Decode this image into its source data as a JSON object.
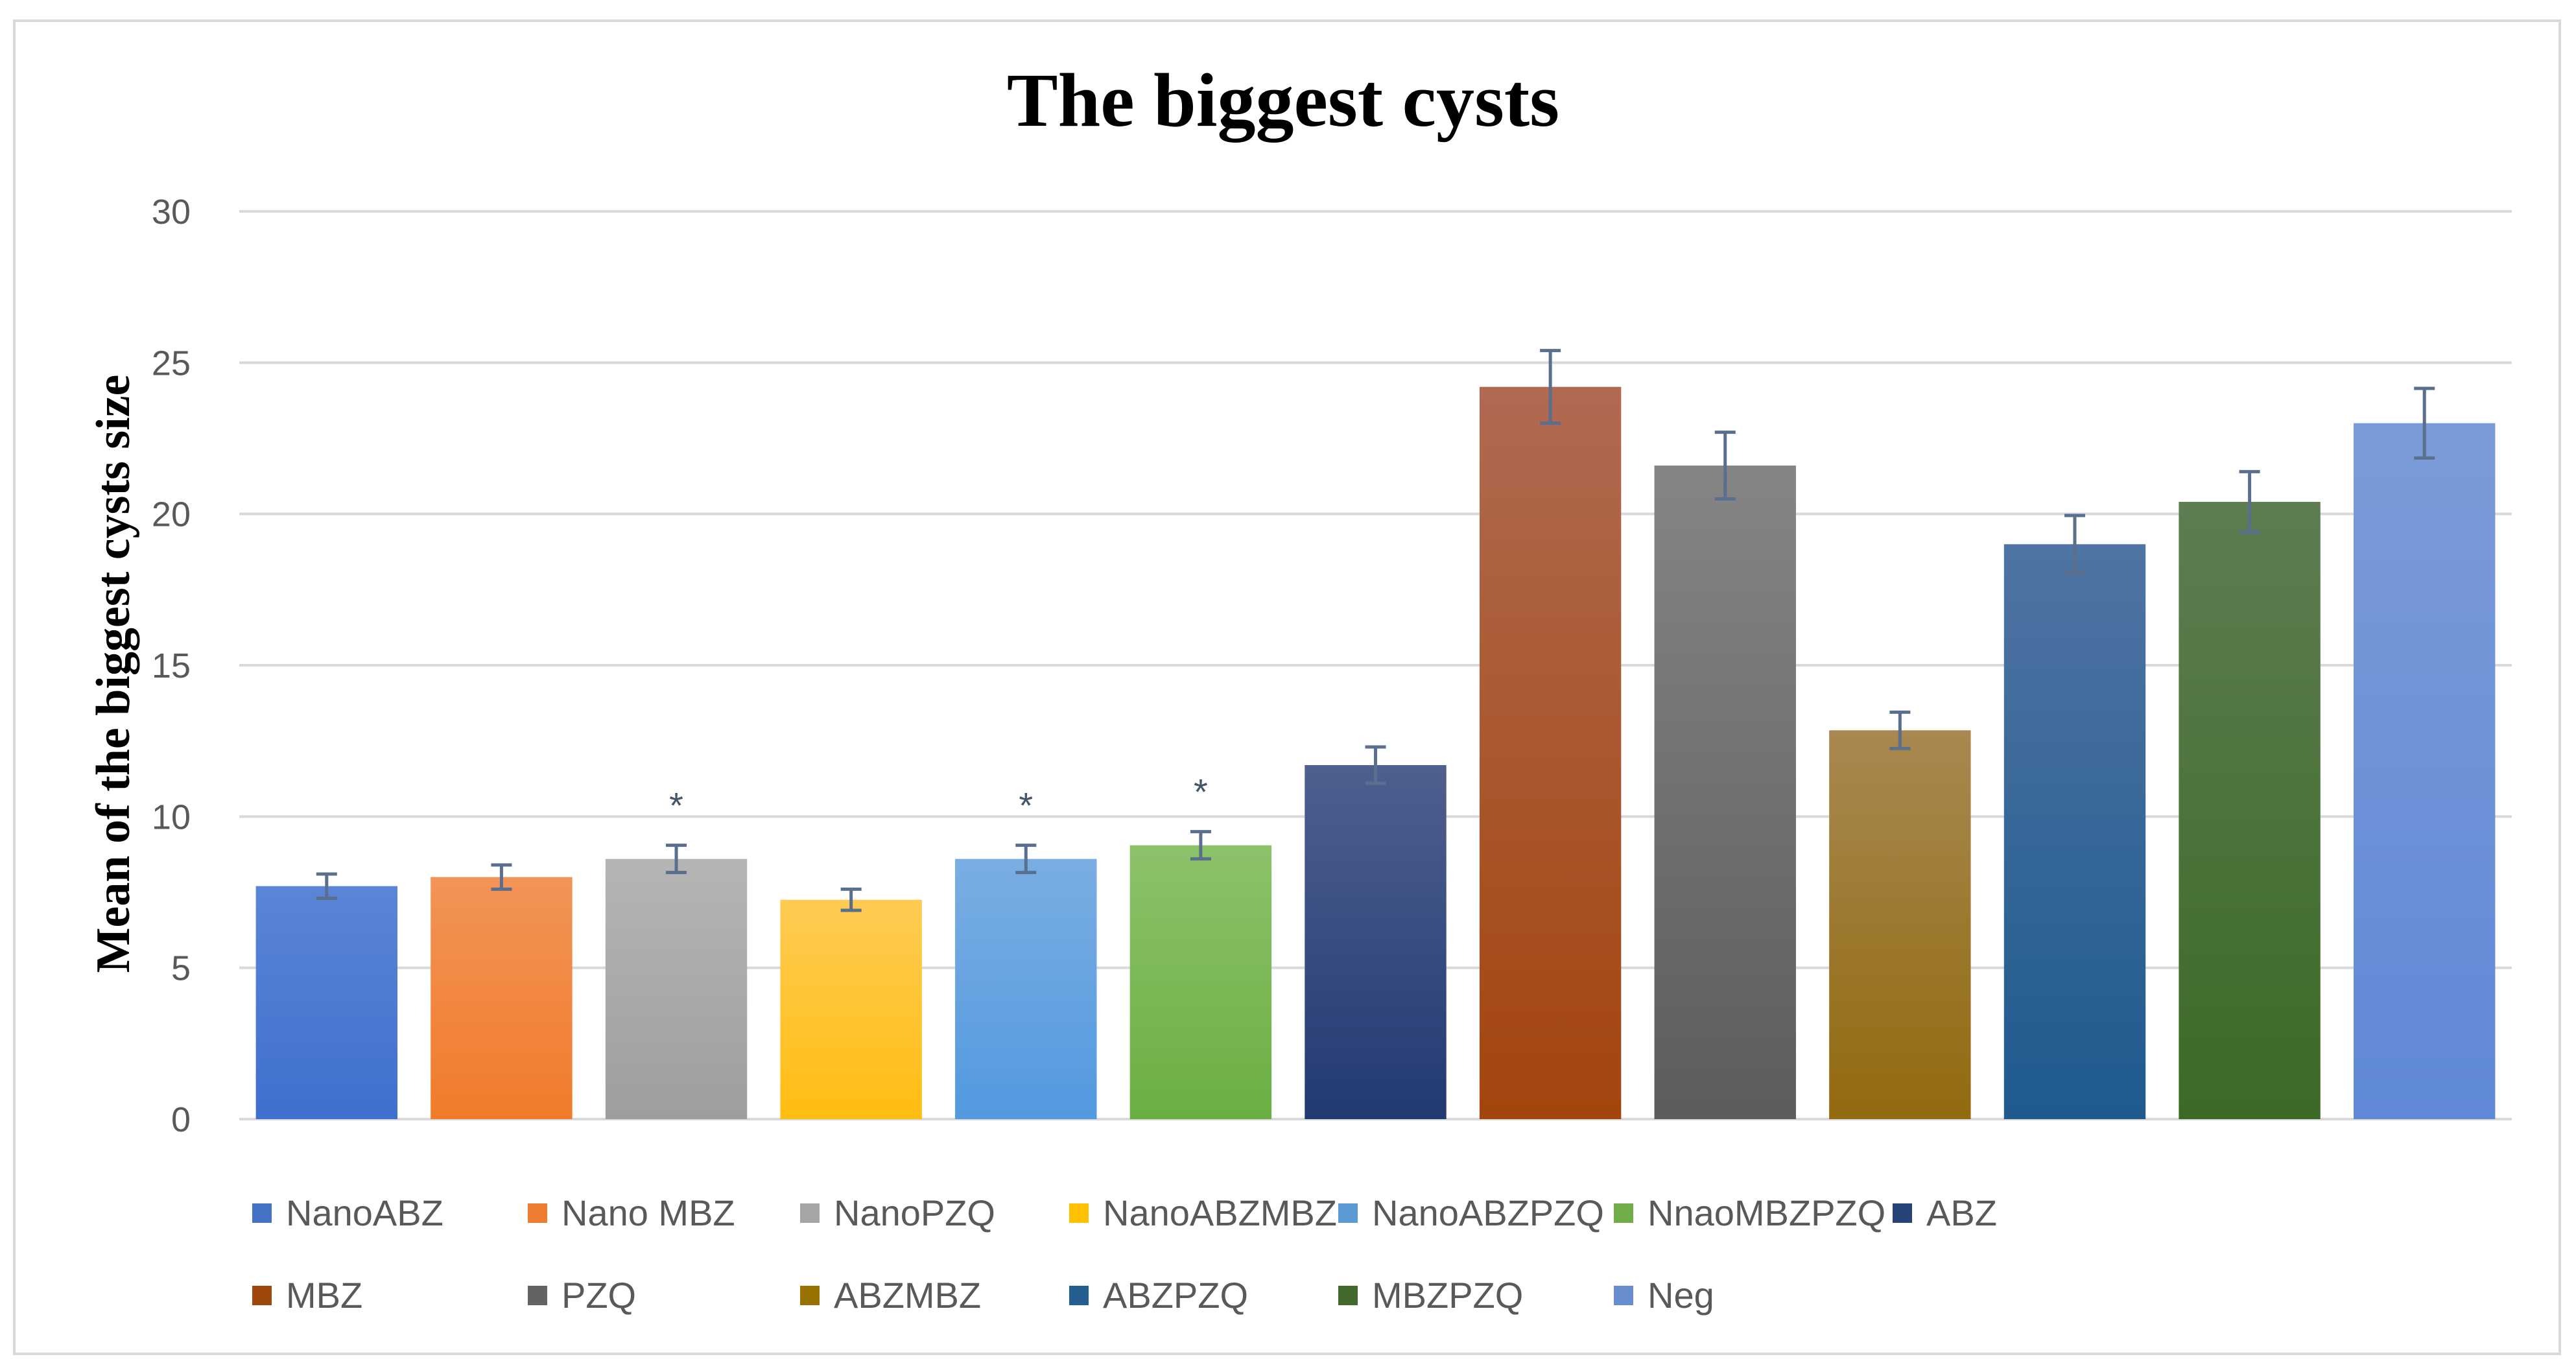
{
  "chart_data": {
    "type": "bar",
    "title": "The biggest cysts",
    "xlabel": "",
    "ylabel": "Mean of the biggest cysts size",
    "ylim": [
      0,
      30
    ],
    "yticks": [
      0,
      5,
      10,
      15,
      20,
      25,
      30
    ],
    "grid": true,
    "legend_placement": "bottom",
    "categories": [
      "NanoABZ",
      "Nano MBZ",
      "NanoPZQ",
      "NanoABZMBZ",
      "NanoABZPZQ",
      "NnaoMBZPZQ",
      "ABZ",
      "MBZ",
      "PZQ",
      "ABZMBZ",
      "ABZPZQ",
      "MBZPZQ",
      "Neg"
    ],
    "values": [
      7.7,
      8.0,
      8.6,
      7.25,
      8.6,
      9.05,
      11.7,
      24.2,
      21.6,
      12.85,
      19.0,
      20.4,
      23.0
    ],
    "errors": [
      0.4,
      0.4,
      0.45,
      0.35,
      0.45,
      0.45,
      0.6,
      1.2,
      1.1,
      0.6,
      0.95,
      1.0,
      1.15
    ],
    "significance": [
      "",
      "",
      "*",
      "",
      "*",
      "*",
      "",
      "",
      "",
      "",
      "",
      "",
      ""
    ],
    "colors": [
      [
        "#5b85d6",
        "#3f6fcf"
      ],
      [
        "#f39457",
        "#f07b2a"
      ],
      [
        "#b5b5b5",
        "#9e9e9e"
      ],
      [
        "#ffcb53",
        "#ffbd12"
      ],
      [
        "#7aaee3",
        "#5299df"
      ],
      [
        "#8cc26a",
        "#6aaf41"
      ],
      [
        "#4f5f8e",
        "#223a72"
      ],
      [
        "#b06a52",
        "#a3450d"
      ],
      [
        "#858585",
        "#5c5c5c"
      ],
      [
        "#a88850",
        "#926a0f"
      ],
      [
        "#4f74a3",
        "#1f5a8e"
      ],
      [
        "#5e7d52",
        "#3c6a25"
      ],
      [
        "#7b9bd8",
        "#5f88d6"
      ]
    ],
    "legend_colors": [
      "#4472c4",
      "#ed7d31",
      "#a5a5a5",
      "#ffc000",
      "#5b9bd5",
      "#70ad47",
      "#264478",
      "#9e480e",
      "#636363",
      "#997300",
      "#255e91",
      "#43682b",
      "#698ed0"
    ],
    "error_bar_color": "#5a6f8e",
    "gridline_color": "#d9d9d9"
  }
}
